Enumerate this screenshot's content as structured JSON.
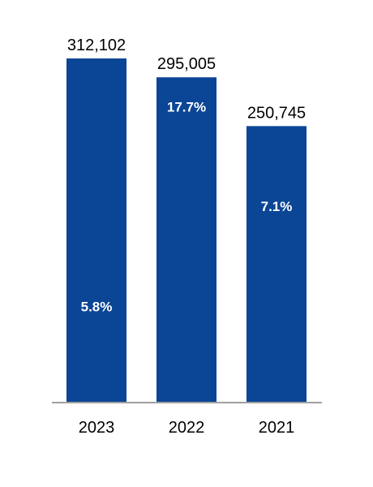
{
  "chart_data": {
    "type": "bar",
    "categories": [
      "2023",
      "2022",
      "2021"
    ],
    "values": [
      312102,
      295005,
      250745
    ],
    "value_labels": [
      "312,102",
      "295,005",
      "250,745"
    ],
    "growth_labels": [
      "5.8%",
      "17.7%",
      "7.1%"
    ],
    "title": "",
    "xlabel": "",
    "ylabel": "",
    "ylim": [
      0,
      312102
    ],
    "grid": false,
    "legend": "none"
  },
  "colors": {
    "bar": "#0b4595",
    "axis": "#a0a0a0",
    "inner_text": "#ffffff",
    "outer_text": "#000000",
    "background": "#ffffff"
  }
}
